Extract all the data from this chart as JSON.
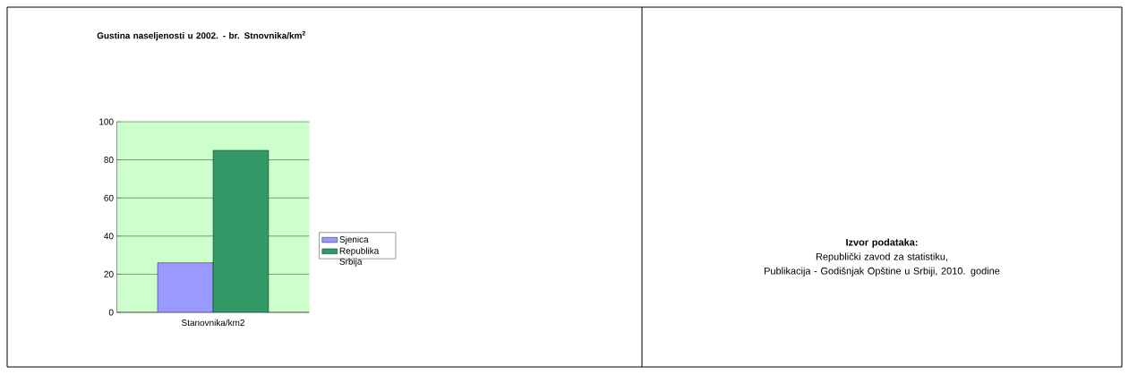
{
  "chart_data": {
    "type": "bar",
    "title": "Gustina naseljenosti u 2002. - br. Stnovnika/km$^{2}$",
    "categories": [
      "Stanovnika/km2"
    ],
    "series": [
      {
        "name": "Sjenica",
        "color": "#9999ff",
        "values": [
          26
        ]
      },
      {
        "name": "Republika Srbija",
        "color": "#339966",
        "values": [
          85
        ]
      }
    ],
    "ylim": [
      0,
      100
    ],
    "yticks": [
      0,
      20,
      40,
      60,
      80,
      100
    ],
    "grid": "y",
    "legend": "right",
    "annotations": [
      "Izvor podataka:",
      "Republički zavod za statistiku,",
      "Publikacija - Godišnjak Opštine u Srbiji, 2010. godine"
    ]
  }
}
